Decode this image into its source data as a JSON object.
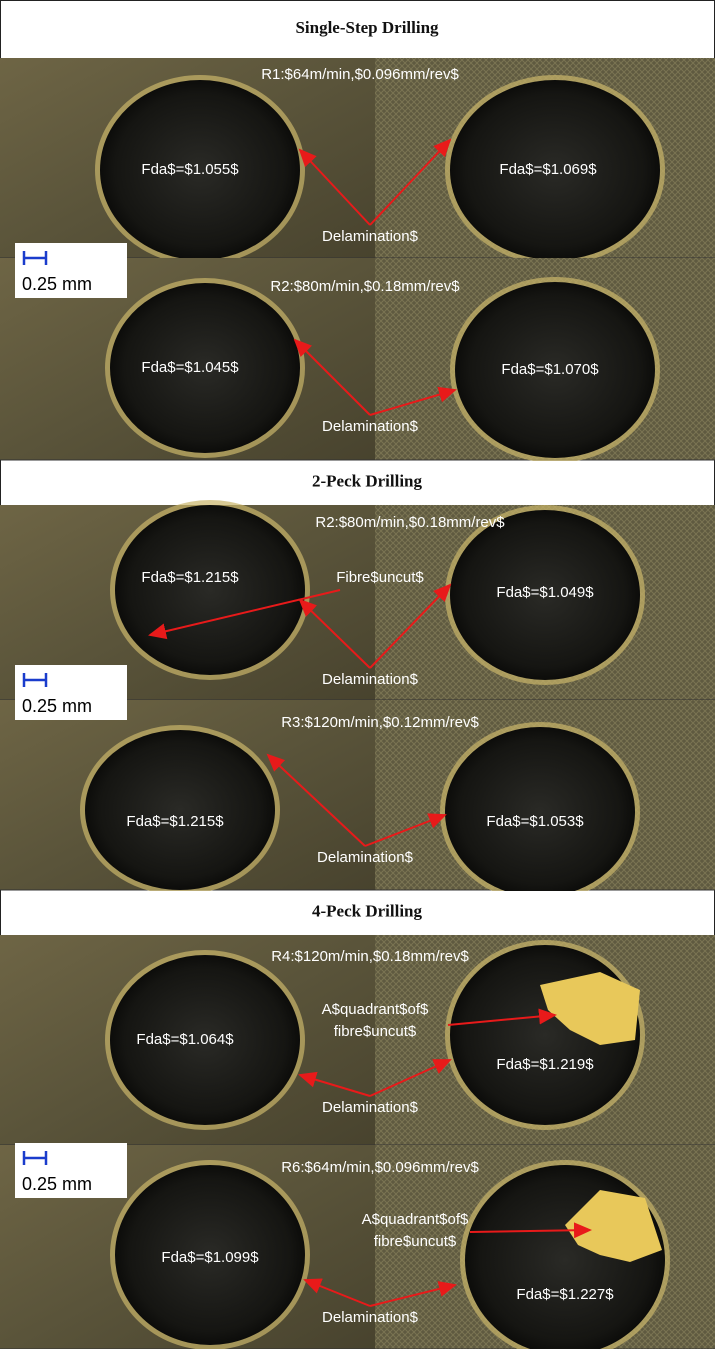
{
  "sections": [
    {
      "title": "Single-Step Drilling",
      "scale_label": "0.25 mm",
      "panels": [
        {
          "caption": "R1:$64m/min,$0.096mm/rev$",
          "fda": [
            "Fda$=$1.055$",
            "Fda$=$1.069$"
          ],
          "delamination": "Delamination$"
        },
        {
          "caption": "R2:$80m/min,$0.18mm/rev$",
          "fda": [
            "Fda$=$1.045$",
            "Fda$=$1.070$"
          ],
          "delamination": "Delamination$"
        }
      ]
    },
    {
      "title": "2-Peck Drilling",
      "scale_label": "0.25 mm",
      "panels": [
        {
          "caption": "R2:$80m/min,$0.18mm/rev$",
          "fda": [
            "Fda$=$1.215$",
            "Fda$=$1.049$"
          ],
          "annotation": [
            "Fibre$uncut$"
          ],
          "delamination": "Delamination$"
        },
        {
          "caption": "R3:$120m/min,$0.12mm/rev$",
          "fda": [
            "Fda$=$1.215$",
            "Fda$=$1.053$"
          ],
          "delamination": "Delamination$"
        }
      ]
    },
    {
      "title": "4-Peck Drilling",
      "scale_label": "0.25 mm",
      "panels": [
        {
          "caption": "R4:$120m/min,$0.18mm/rev$",
          "fda": [
            "Fda$=$1.064$",
            "Fda$=$1.219$"
          ],
          "annotation": [
            "A$quadrant$of$",
            "fibre$uncut$"
          ],
          "delamination": "Delamination$"
        },
        {
          "caption": "R6:$64m/min,$0.096mm/rev$",
          "fda": [
            "Fda$=$1.099$",
            "Fda$=$1.227$"
          ],
          "annotation": [
            "A$quadrant$of$",
            "fibre$uncut$"
          ],
          "delamination": "Delamination$"
        }
      ]
    }
  ]
}
